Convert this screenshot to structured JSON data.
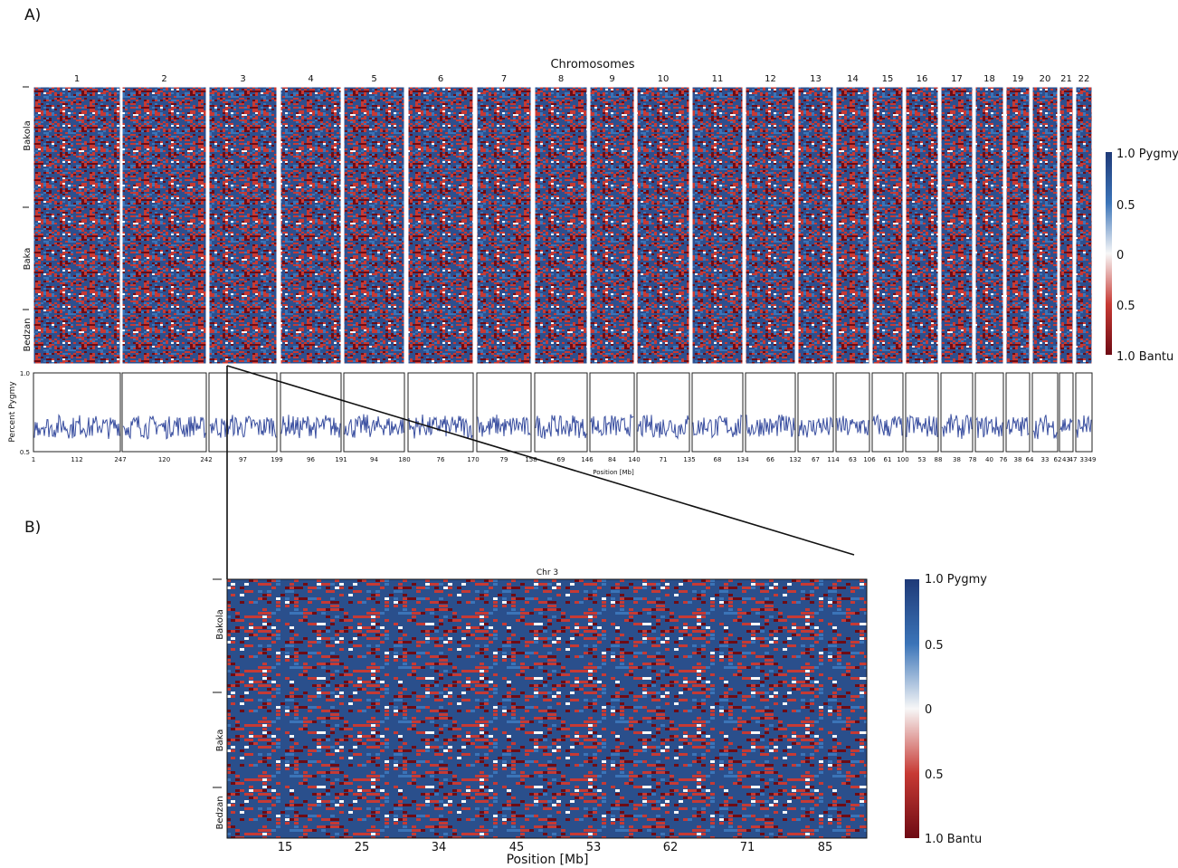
{
  "panel_a_label": "A)",
  "panel_b_label": "B)",
  "chart_data": [
    {
      "type": "heatmap",
      "title": "Chromosomes",
      "chromosomes": [
        "1",
        "2",
        "3",
        "4",
        "5",
        "6",
        "7",
        "8",
        "9",
        "10",
        "11",
        "12",
        "13",
        "14",
        "15",
        "16",
        "17",
        "18",
        "19",
        "20",
        "21",
        "22"
      ],
      "populations": [
        "Bakola",
        "Baka",
        "Bedzan"
      ],
      "colorbar": {
        "ticks": [
          "1.0 Pygmy",
          "0.5",
          "0",
          "0.5",
          "1.0 Bantu"
        ],
        "colors": [
          "#1f3a78",
          "#3b74b8",
          "#f7f7f7",
          "#c73a34",
          "#6e0b14"
        ]
      }
    },
    {
      "type": "line",
      "ylabel": "Percent Pygmy",
      "xlabel": "Position [Mb]",
      "ylim": [
        0.5,
        1.0
      ],
      "ytick_labels": [
        "1.0",
        "0.5"
      ],
      "line_color": "#3a4fa0",
      "mean_level": 0.66,
      "x_tick_labels": [
        [
          "1",
          "112",
          "247"
        ],
        [
          "",
          "120",
          "242"
        ],
        [
          "",
          "97",
          "199"
        ],
        [
          "",
          "96",
          "191"
        ],
        [
          "",
          "94",
          "180"
        ],
        [
          "",
          "76",
          "170"
        ],
        [
          "",
          "79",
          "158"
        ],
        [
          "",
          "69",
          "146"
        ],
        [
          "",
          "84",
          "140"
        ],
        [
          "",
          "71",
          "135"
        ],
        [
          "",
          "68",
          "134"
        ],
        [
          "",
          "66",
          "132"
        ],
        [
          "",
          "67",
          "114"
        ],
        [
          "",
          "63",
          "106"
        ],
        [
          "",
          "61",
          "100"
        ],
        [
          "",
          "53",
          "88"
        ],
        [
          "",
          "38",
          "78"
        ],
        [
          "",
          "40",
          "76"
        ],
        [
          "",
          "38",
          "64"
        ],
        [
          "",
          "33",
          "62"
        ],
        [
          "",
          "43",
          "47"
        ],
        [
          "",
          "33",
          "49"
        ]
      ]
    },
    {
      "type": "heatmap",
      "title": "Chr 3",
      "xlabel": "Position [Mb]",
      "x_ticks": [
        "15",
        "25",
        "34",
        "45",
        "53",
        "62",
        "71",
        "85"
      ],
      "populations": [
        "Bakola",
        "Baka",
        "Bedzan"
      ],
      "colorbar": {
        "ticks": [
          "1.0 Pygmy",
          "0.5",
          "0",
          "0.5",
          "1.0 Bantu"
        ],
        "colors": [
          "#1f3a78",
          "#3b74b8",
          "#f7f7f7",
          "#c73a34",
          "#6e0b14"
        ]
      }
    }
  ]
}
